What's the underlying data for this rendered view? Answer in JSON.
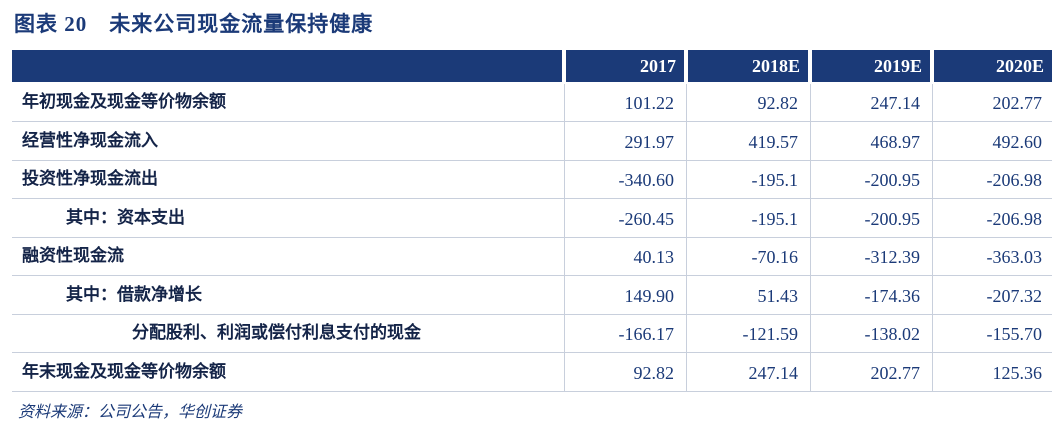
{
  "header": {
    "title": "图表 20　未来公司现金流量保持健康"
  },
  "table": {
    "columns": [
      "2017",
      "2018E",
      "2019E",
      "2020E"
    ],
    "rows": [
      {
        "label": "年初现金及现金等价物余额",
        "values": [
          "101.22",
          "92.82",
          "247.14",
          "202.77"
        ]
      },
      {
        "label": "经营性净现金流入",
        "values": [
          "291.97",
          "419.57",
          "468.97",
          "492.60"
        ]
      },
      {
        "label": "投资性净现金流出",
        "values": [
          "-340.60",
          "-195.1",
          "-200.95",
          "-206.98"
        ]
      },
      {
        "label": "其中：资本支出",
        "values": [
          "-260.45",
          "-195.1",
          "-200.95",
          "-206.98"
        ]
      },
      {
        "label": "融资性现金流",
        "values": [
          "40.13",
          "-70.16",
          "-312.39",
          "-363.03"
        ]
      },
      {
        "label": "其中：借款净增长",
        "values": [
          "149.90",
          "51.43",
          "-174.36",
          "-207.32"
        ]
      },
      {
        "label": "分配股利、利润或偿付利息支付的现金",
        "values": [
          "-166.17",
          "-121.59",
          "-138.02",
          "-155.70"
        ]
      },
      {
        "label": "年末现金及现金等价物余额",
        "values": [
          "92.82",
          "247.14",
          "202.77",
          "125.36"
        ]
      }
    ]
  },
  "source": "资料来源：公司公告，华创证券"
}
